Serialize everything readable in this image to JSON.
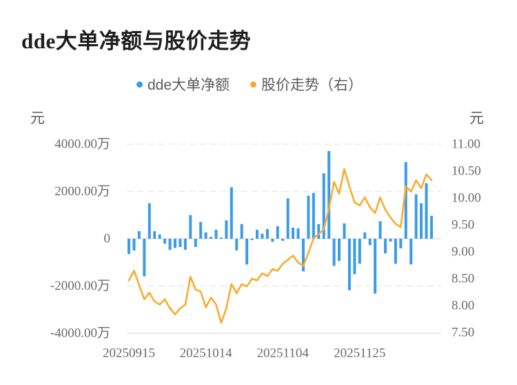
{
  "title": "dde大单净额与股价走势",
  "legend": [
    {
      "name": "dde大单净额",
      "color": "#3b9be9",
      "marker": "dot"
    },
    {
      "name": "股价走势（右）",
      "color": "#f8ac2e",
      "marker": "dot"
    }
  ],
  "axis_unit_left": "元",
  "axis_unit_right": "元",
  "colors": {
    "bar": "#3b9be9",
    "line": "#f8ac2e",
    "grid": "#ebebeb",
    "zero_line": "#e4e4e4",
    "axis_text": "#6b6b6b",
    "title_text": "#1e1e1e",
    "background": "#ffffff"
  },
  "chart_data": {
    "type": "bar+line",
    "title": "dde大单净额与股价走势",
    "n_points": 60,
    "x_tick_labels": [
      {
        "index": 0,
        "label": "20250915"
      },
      {
        "index": 15,
        "label": "20251014"
      },
      {
        "index": 30,
        "label": "20251104"
      },
      {
        "index": 45,
        "label": "20251125"
      }
    ],
    "left_axis": {
      "unit": "元",
      "tick_labels": [
        "4000.00万",
        "2000.00万",
        "0",
        "-2000.00万",
        "-4000.00万"
      ],
      "min_wan": -4000,
      "max_wan": 4000,
      "grid": true
    },
    "right_axis": {
      "unit": "元",
      "tick_labels": [
        "11.00",
        "10.50",
        "10.00",
        "9.50",
        "9.00",
        "8.50",
        "8.00",
        "7.50"
      ],
      "min": 7.5,
      "max": 11.0,
      "grid": false
    },
    "series": [
      {
        "name": "dde大单净额",
        "type": "bar",
        "axis": "left",
        "unit": "万元",
        "color": "#3b9be9",
        "values": [
          -650,
          -500,
          320,
          -1590,
          1500,
          320,
          180,
          -210,
          -470,
          -390,
          -350,
          -470,
          1000,
          -350,
          710,
          270,
          80,
          380,
          50,
          780,
          2180,
          -500,
          620,
          -1090,
          -60,
          380,
          215,
          410,
          -130,
          530,
          -90,
          1710,
          470,
          440,
          -1380,
          1820,
          1940,
          620,
          2770,
          3710,
          -1150,
          -940,
          650,
          -2180,
          -1500,
          -1060,
          270,
          -270,
          -2320,
          740,
          -620,
          -120,
          -1060,
          -410,
          3240,
          -1090,
          1880,
          1500,
          2350,
          970
        ]
      },
      {
        "name": "股价走势（右）",
        "type": "line",
        "axis": "right",
        "unit": "元",
        "color": "#f8ac2e",
        "values": [
          8.47,
          8.65,
          8.38,
          8.12,
          8.24,
          8.08,
          8.02,
          8.12,
          7.95,
          7.84,
          7.95,
          8.02,
          8.54,
          8.3,
          8.26,
          7.97,
          8.15,
          8.02,
          7.68,
          7.95,
          8.4,
          8.23,
          8.4,
          8.36,
          8.5,
          8.47,
          8.6,
          8.55,
          8.68,
          8.65,
          8.78,
          8.85,
          8.93,
          8.8,
          8.74,
          8.98,
          9.25,
          9.33,
          9.42,
          9.8,
          10.3,
          10.08,
          10.54,
          10.21,
          9.92,
          9.86,
          10.01,
          9.83,
          9.72,
          10.01,
          9.78,
          9.64,
          9.52,
          9.46,
          10.22,
          10.12,
          10.33,
          10.18,
          10.44,
          10.33
        ]
      }
    ]
  }
}
